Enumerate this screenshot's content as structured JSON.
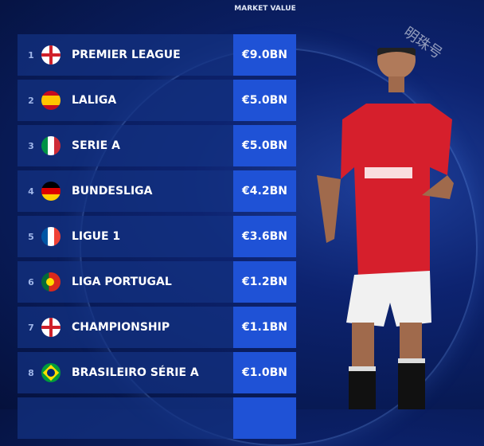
{
  "header": {
    "value_col": "MARKET VALUE"
  },
  "watermark": "明珠号",
  "rows": [
    {
      "rank": "1",
      "flag": "england",
      "name": "PREMIER LEAGUE",
      "value": "€9.0BN"
    },
    {
      "rank": "2",
      "flag": "spain",
      "name": "LALIGA",
      "value": "€5.0BN"
    },
    {
      "rank": "3",
      "flag": "italy",
      "name": "SERIE A",
      "value": "€5.0BN"
    },
    {
      "rank": "4",
      "flag": "germany",
      "name": "BUNDESLIGA",
      "value": "€4.2BN"
    },
    {
      "rank": "5",
      "flag": "france",
      "name": "LIGUE 1",
      "value": "€3.6BN"
    },
    {
      "rank": "6",
      "flag": "portugal",
      "name": "LIGA PORTUGAL",
      "value": "€1.2BN"
    },
    {
      "rank": "7",
      "flag": "england",
      "name": "CHAMPIONSHIP",
      "value": "€1.1BN"
    },
    {
      "rank": "8",
      "flag": "brazil",
      "name": "BRASILEIRO SÉRIE A",
      "value": "€1.0BN"
    }
  ],
  "colors": {
    "row": "#14328a",
    "value_box": "#1f52d6",
    "shirt": "#d61f2c"
  }
}
